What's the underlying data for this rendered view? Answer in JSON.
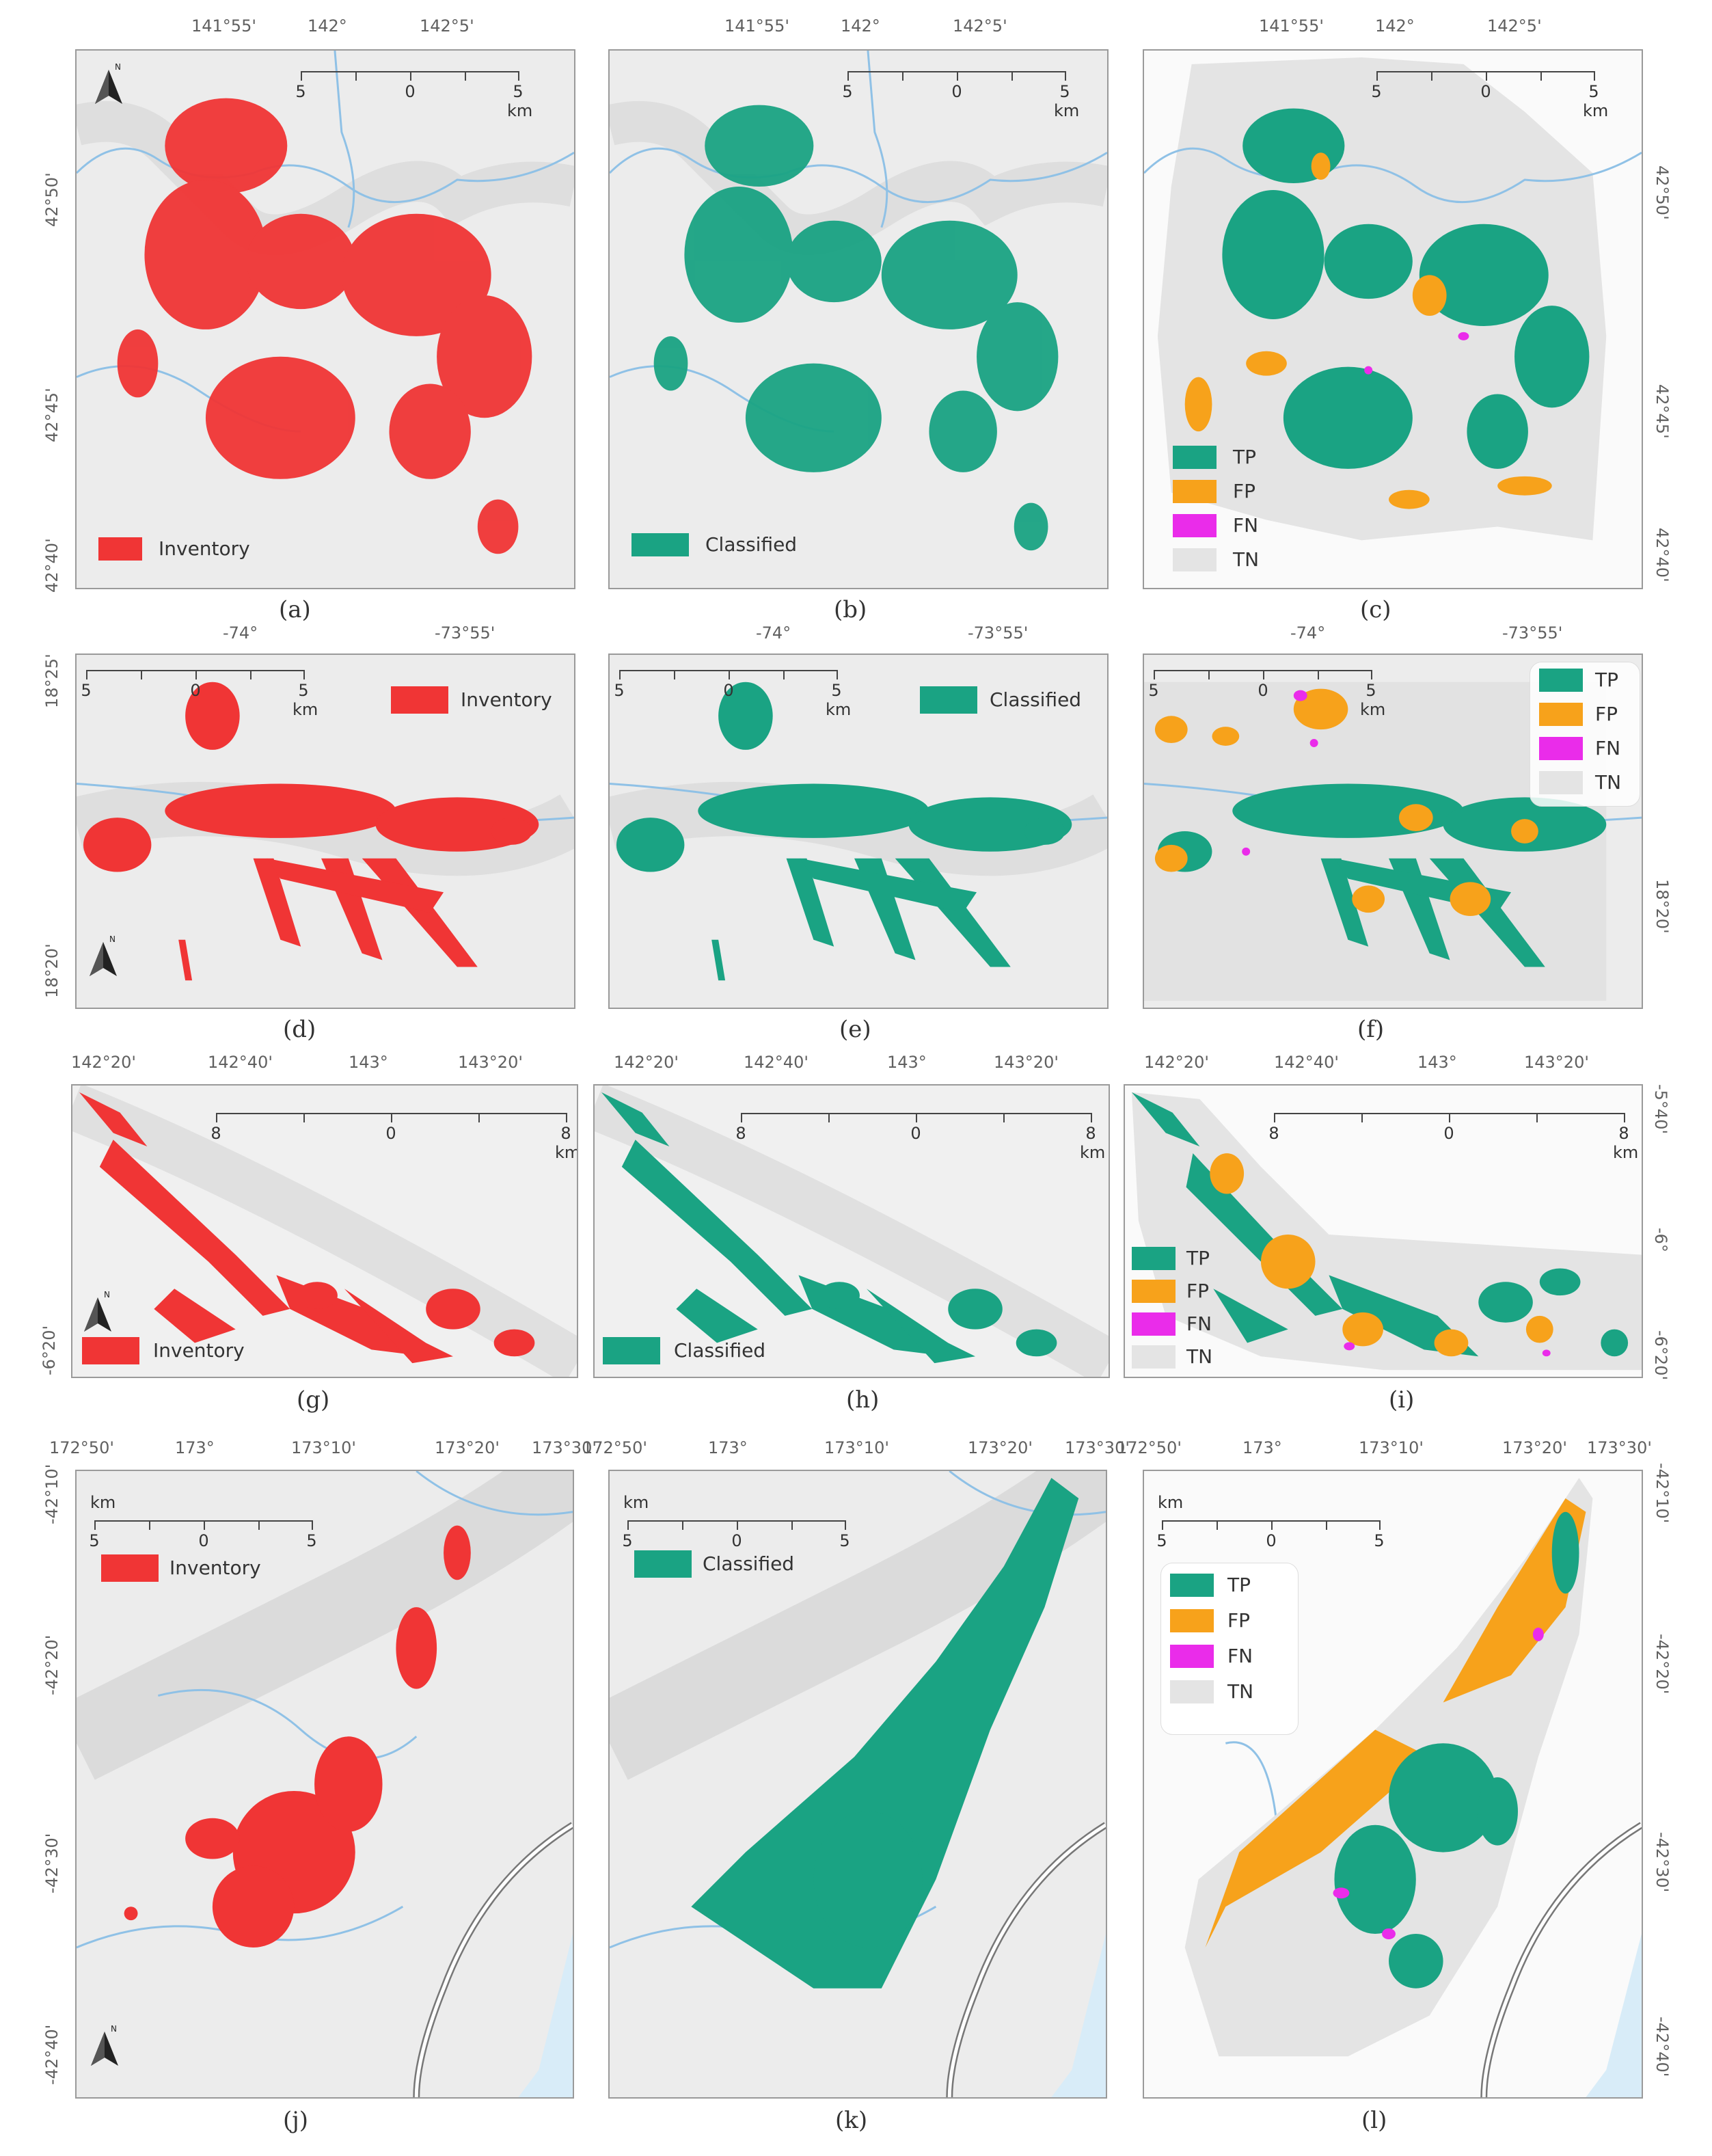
{
  "colors": {
    "inventory": "#f03535",
    "classified": "#1aa383",
    "tp": "#1aa383",
    "fp": "#f7a21b",
    "fn": "#ea2cea",
    "tn": "#e4e4e4",
    "river": "#8fc1e6",
    "terrain": "#e9e9e9"
  },
  "icons": {
    "north_arrow": "north-arrow-icon",
    "n_letter": "N"
  },
  "captions": [
    "(a)",
    "(b)",
    "(c)",
    "(d)",
    "(e)",
    "(f)",
    "(g)",
    "(h)",
    "(i)",
    "(j)",
    "(k)",
    "(l)"
  ],
  "legend_labels": {
    "inventory": "Inventory",
    "classified": "Classified",
    "tp": "TP",
    "fp": "FP",
    "fn": "FN",
    "tn": "TN"
  },
  "rows": [
    {
      "lon_ticks": [
        "141°55'",
        "142°",
        "142°5'"
      ],
      "lat_ticks_left": [
        "42°50'",
        "42°45'",
        "42°40'"
      ],
      "lat_ticks_right": [
        "42°50'",
        "42°45'",
        "42°40'"
      ],
      "scale": {
        "ticks": [
          "5",
          "0",
          "5"
        ],
        "unit": "km"
      }
    },
    {
      "lon_ticks": [
        "-74°",
        "-73°55'"
      ],
      "lat_ticks_left": [
        "18°25'",
        "18°20'"
      ],
      "lat_ticks_right": [
        "18°20'"
      ],
      "scale": {
        "ticks": [
          "5",
          "0",
          "5"
        ],
        "unit": "km"
      }
    },
    {
      "lon_ticks": [
        "142°20'",
        "142°40'",
        "143°",
        "143°20'"
      ],
      "lat_ticks_left": [
        "-6°20'"
      ],
      "lat_ticks_right": [
        "-5°40'",
        "-6°",
        "-6°20'"
      ],
      "scale": {
        "ticks": [
          "8",
          "0",
          "8"
        ],
        "unit": "km"
      }
    },
    {
      "lon_ticks": [
        "172°50'",
        "173°",
        "173°10'",
        "173°20'",
        "173°30'"
      ],
      "lat_ticks_left": [
        "-42°10'",
        "-42°20'",
        "-42°30'",
        "-42°40'"
      ],
      "lat_ticks_right": [
        "-42°10'",
        "-42°20'",
        "-42°30'",
        "-42°40'"
      ],
      "scale": {
        "ticks": [
          "5",
          "0",
          "5"
        ],
        "unit": "km"
      }
    }
  ]
}
